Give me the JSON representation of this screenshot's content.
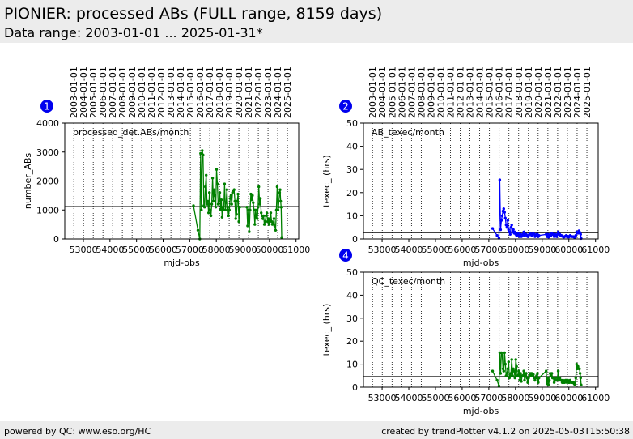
{
  "header": {
    "title": "PIONIER: processed ABs (FULL range, 8159 days)",
    "subtitle": "Data range: 2003-01-01 ... 2025-01-31*"
  },
  "footer": {
    "left": "powered by QC: www.eso.org/HC",
    "right": "created by trendPlotter v4.1.2 on 2025-05-03T15:50:38"
  },
  "colors": {
    "badge": "#0000ee",
    "blue_series": "#0000ff",
    "green_series": "#008000"
  },
  "chart_data": [
    {
      "type": "line",
      "badge": "1",
      "annotation": "processed_det.ABs/month",
      "xlabel": "mjd-obs",
      "ylabel": "number_ABs",
      "xlim": [
        52300,
        61100
      ],
      "ylim": [
        0,
        4000
      ],
      "xticks": [
        53000,
        54000,
        55000,
        56000,
        57000,
        58000,
        59000,
        60000,
        61000
      ],
      "yticks": [
        0,
        1000,
        2000,
        3000,
        4000
      ],
      "top_dates": [
        "2003-01-01",
        "2004-01-01",
        "2005-01-01",
        "2006-01-01",
        "2007-01-01",
        "2008-01-01",
        "2009-01-01",
        "2010-01-01",
        "2011-01-01",
        "2012-01-01",
        "2013-01-01",
        "2014-01-01",
        "2015-01-01",
        "2016-01-01",
        "2017-01-01",
        "2018-01-01",
        "2019-01-01",
        "2020-01-01",
        "2021-01-01",
        "2022-01-01",
        "2023-01-01",
        "2024-01-01",
        "2025-01-01"
      ],
      "reference_line": 1120,
      "series": [
        {
          "color": "#008000",
          "x": [
            57140,
            57310,
            57380,
            57410,
            57440,
            57470,
            57500,
            57530,
            57560,
            57590,
            57620,
            57650,
            57680,
            57710,
            57740,
            57770,
            57800,
            57830,
            57860,
            57890,
            57920,
            57950,
            57980,
            58010,
            58040,
            58070,
            58100,
            58130,
            58160,
            58190,
            58220,
            58250,
            58280,
            58310,
            58340,
            58370,
            58400,
            58430,
            58460,
            58490,
            58520,
            58550,
            58580,
            58610,
            58640,
            58670,
            58700,
            58730,
            58760,
            58790,
            58820,
            58850,
            58880,
            59150,
            59180,
            59210,
            59240,
            59270,
            59300,
            59330,
            59360,
            59390,
            59420,
            59450,
            59480,
            59510,
            59540,
            59570,
            59600,
            59630,
            59660,
            59690,
            59720,
            59750,
            59780,
            59810,
            59840,
            59870,
            59900,
            59930,
            59960,
            59990,
            60020,
            60050,
            60080,
            60110,
            60140,
            60170,
            60200,
            60230,
            60260,
            60290,
            60320,
            60340,
            60380,
            60400,
            60420,
            60440,
            60460
          ],
          "y": [
            1150,
            300,
            0,
            2950,
            1000,
            3050,
            2900,
            1150,
            1100,
            1800,
            2200,
            1200,
            1300,
            900,
            1600,
            1000,
            800,
            1200,
            2100,
            1300,
            1700,
            1500,
            1100,
            2400,
            1900,
            1200,
            1300,
            1600,
            1000,
            1350,
            750,
            1100,
            1000,
            1900,
            1000,
            1250,
            1700,
            1100,
            800,
            1000,
            1400,
            1500,
            1200,
            1600,
            1650,
            1700,
            1300,
            700,
            850,
            1300,
            1550,
            600,
            1100,
            1100,
            450,
            1000,
            250,
            1000,
            1550,
            1350,
            1500,
            1250,
            1000,
            500,
            1000,
            750,
            700,
            1100,
            1800,
            1200,
            1400,
            900,
            800,
            700,
            800,
            500,
            600,
            800,
            900,
            600,
            700,
            500,
            650,
            900,
            600,
            500,
            550,
            700,
            450,
            300,
            1000,
            1800,
            1000,
            1100,
            1600,
            1700,
            1300,
            1100,
            50
          ]
        }
      ]
    },
    {
      "type": "line",
      "badge": "2",
      "annotation": "AB_texec/month",
      "xlabel": "mjd-obs",
      "ylabel": "texec_ (hrs)",
      "xlim": [
        52300,
        61100
      ],
      "ylim": [
        0,
        50
      ],
      "xticks": [
        53000,
        54000,
        55000,
        56000,
        57000,
        58000,
        59000,
        60000,
        61000
      ],
      "yticks": [
        0,
        10,
        20,
        30,
        40,
        50
      ],
      "top_dates": [
        "2003-01-01",
        "2004-01-01",
        "2005-01-01",
        "2006-01-01",
        "2007-01-01",
        "2008-01-01",
        "2009-01-01",
        "2010-01-01",
        "2011-01-01",
        "2012-01-01",
        "2013-01-01",
        "2014-01-01",
        "2015-01-01",
        "2016-01-01",
        "2017-01-01",
        "2018-01-01",
        "2019-01-01",
        "2020-01-01",
        "2021-01-01",
        "2022-01-01",
        "2023-01-01",
        "2024-01-01",
        "2025-01-01"
      ],
      "reference_line": 2.7,
      "series": [
        {
          "color": "#0000ff",
          "x": [
            57140,
            57310,
            57380,
            57410,
            57440,
            57470,
            57500,
            57530,
            57560,
            57590,
            57620,
            57650,
            57680,
            57710,
            57740,
            57770,
            57800,
            57830,
            57860,
            57890,
            57920,
            57950,
            57980,
            58010,
            58040,
            58070,
            58100,
            58130,
            58160,
            58190,
            58220,
            58250,
            58280,
            58310,
            58340,
            58370,
            58400,
            58430,
            58460,
            58490,
            58520,
            58550,
            58580,
            58610,
            58640,
            58670,
            58700,
            58730,
            58760,
            58790,
            58820,
            58850,
            58880,
            59150,
            59180,
            59210,
            59240,
            59270,
            59300,
            59330,
            59360,
            59390,
            59420,
            59450,
            59480,
            59510,
            59540,
            59570,
            59600,
            59630,
            59660,
            59690,
            59720,
            59750,
            59780,
            59810,
            59840,
            59870,
            59900,
            59930,
            59960,
            59990,
            60020,
            60050,
            60080,
            60110,
            60140,
            60170,
            60200,
            60230,
            60260,
            60290,
            60320,
            60340,
            60380,
            60400,
            60420,
            60440,
            60460
          ],
          "y": [
            4.5,
            1.5,
            0.3,
            25.5,
            4,
            8,
            10,
            12,
            13,
            11.5,
            9,
            6,
            5,
            8,
            4,
            3,
            2,
            5,
            6,
            3,
            4,
            2.5,
            3,
            2,
            1.5,
            2,
            2.5,
            1.5,
            1,
            2,
            1,
            1.5,
            2,
            3,
            1.5,
            2,
            2,
            1.5,
            1,
            1.5,
            2,
            2.5,
            2,
            1.5,
            2,
            2.5,
            2,
            1,
            1.5,
            2,
            2,
            1,
            1.5,
            2,
            1,
            2,
            0.8,
            1.5,
            2,
            1.5,
            2.5,
            2,
            2,
            1,
            2,
            1.5,
            1,
            2,
            3,
            2,
            2,
            1.5,
            1.5,
            1.2,
            1,
            0.8,
            1,
            1.2,
            1.5,
            1,
            1.2,
            0.8,
            1,
            1.5,
            1.2,
            1,
            1,
            1,
            0.8,
            0.5,
            1.5,
            3,
            2.5,
            2.5,
            3.5,
            3,
            2.5,
            2,
            0.2
          ]
        }
      ]
    },
    {
      "type": "line",
      "badge": "4",
      "annotation": "QC_texec/month",
      "xlabel": "mjd-obs",
      "ylabel": "texec_ (hrs)",
      "xlim": [
        52300,
        61100
      ],
      "ylim": [
        0,
        50
      ],
      "xticks": [
        53000,
        54000,
        55000,
        56000,
        57000,
        58000,
        59000,
        60000,
        61000
      ],
      "yticks": [
        0,
        10,
        20,
        30,
        40,
        50
      ],
      "top_dates": [],
      "reference_line": 4.6,
      "series": [
        {
          "color": "#008000",
          "x": [
            57140,
            57310,
            57380,
            57410,
            57440,
            57470,
            57500,
            57530,
            57560,
            57590,
            57620,
            57650,
            57680,
            57710,
            57740,
            57770,
            57800,
            57830,
            57860,
            57890,
            57920,
            57950,
            57980,
            58010,
            58040,
            58070,
            58100,
            58130,
            58160,
            58190,
            58220,
            58250,
            58280,
            58310,
            58340,
            58370,
            58400,
            58430,
            58460,
            58490,
            58520,
            58550,
            58580,
            58610,
            58640,
            58670,
            58700,
            58730,
            58760,
            58790,
            58820,
            58850,
            58880,
            59150,
            59180,
            59210,
            59240,
            59270,
            59300,
            59330,
            59360,
            59390,
            59420,
            59450,
            59480,
            59510,
            59540,
            59570,
            59600,
            59630,
            59660,
            59690,
            59720,
            59750,
            59780,
            59810,
            59840,
            59870,
            59900,
            59930,
            59960,
            59990,
            60020,
            60050,
            60080,
            60110,
            60140,
            60170,
            60200,
            60230,
            60260,
            60290,
            60320,
            60340,
            60380,
            60400,
            60420,
            60440,
            60460
          ],
          "y": [
            7,
            3,
            0.5,
            15,
            6,
            15,
            14,
            8,
            7,
            15,
            10,
            5,
            6,
            8,
            11,
            4,
            5,
            6,
            12,
            5,
            8,
            7,
            4,
            12,
            9,
            5,
            5,
            7,
            3,
            6,
            2.5,
            5,
            5,
            7,
            3,
            5,
            6,
            4,
            2,
            4,
            5,
            6,
            5,
            6,
            5,
            5.5,
            4,
            3,
            4,
            5,
            6,
            2,
            4,
            7,
            1.5,
            4,
            1,
            3,
            6,
            5,
            6,
            4,
            4,
            2,
            4,
            3,
            3,
            4,
            7,
            3,
            4,
            3,
            3,
            2,
            3,
            2,
            2,
            3,
            3,
            2,
            3,
            2,
            2,
            3,
            2,
            2,
            2,
            2,
            1.5,
            1,
            4,
            10,
            8,
            9,
            8,
            8,
            6,
            4,
            1
          ]
        }
      ]
    }
  ]
}
